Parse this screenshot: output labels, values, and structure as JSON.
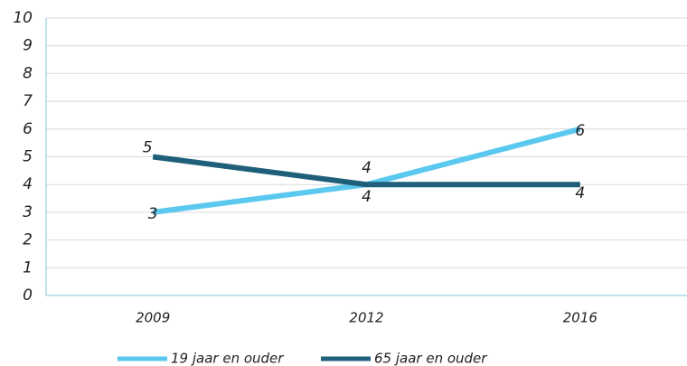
{
  "chart_data": {
    "type": "line",
    "categories": [
      "2009",
      "2012",
      "2016"
    ],
    "series": [
      {
        "name": "19 jaar en ouder",
        "color": "#5bc8f0",
        "values": [
          3,
          4,
          6
        ]
      },
      {
        "name": "65 jaar en ouder",
        "color": "#1f5f7a",
        "values": [
          5,
          4,
          4
        ]
      }
    ],
    "ylim": [
      0,
      10
    ],
    "yticks": [
      0,
      1,
      2,
      3,
      4,
      5,
      6,
      7,
      8,
      9,
      10
    ],
    "grid": true,
    "legend": "bottom"
  }
}
